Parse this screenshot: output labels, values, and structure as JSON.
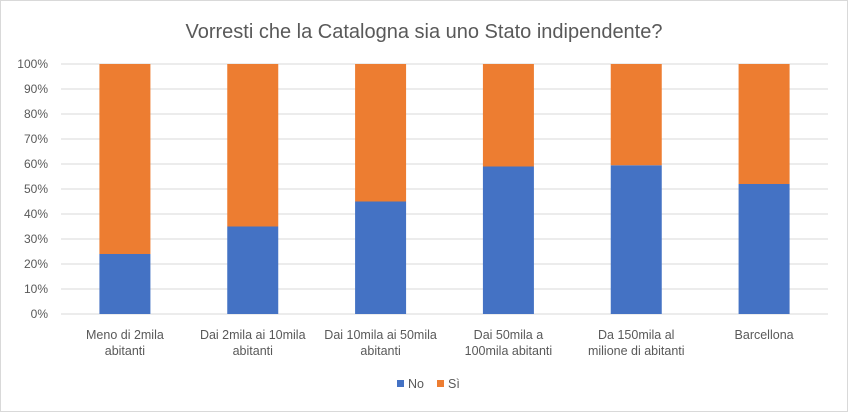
{
  "chart_data": {
    "type": "bar",
    "stacked": true,
    "percent_stacked": true,
    "title": "Vorresti che la Catalogna sia uno Stato indipendente?",
    "xlabel": "",
    "ylabel": "",
    "categories": [
      [
        "Meno di 2mila",
        "abitanti"
      ],
      [
        "Dai 2mila ai 10mila",
        "abitanti"
      ],
      [
        "Dai 10mila ai 50mila",
        "abitanti"
      ],
      [
        "Dai 50mila a",
        "100mila abitanti"
      ],
      [
        "Da 150mila al",
        "milione di abitanti"
      ],
      [
        "Barcellona"
      ]
    ],
    "series": [
      {
        "name": "No",
        "color": "#4472c4",
        "values": [
          24,
          35,
          45,
          59,
          59.5,
          52
        ]
      },
      {
        "name": "Sì",
        "color": "#ed7d31",
        "values": [
          76,
          65,
          55,
          41,
          40.5,
          48
        ]
      }
    ],
    "yticks": [
      "0%",
      "10%",
      "20%",
      "30%",
      "40%",
      "50%",
      "60%",
      "70%",
      "80%",
      "90%",
      "100%"
    ],
    "ylim": [
      0,
      100
    ],
    "grid": true,
    "gridColor": "#d9d9d9",
    "legend": "bottom"
  }
}
